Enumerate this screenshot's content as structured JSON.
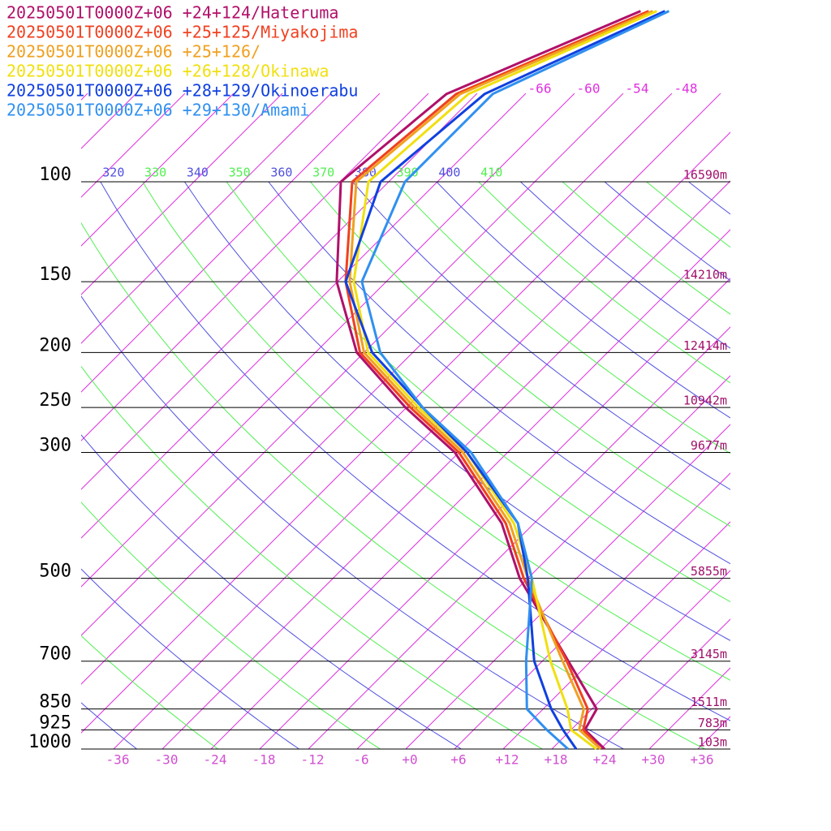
{
  "chart_data": {
    "type": "skewt",
    "ylog": true,
    "ylim": [
      1000,
      100
    ],
    "xlim": [
      -40,
      40
    ],
    "yticks": [
      100,
      150,
      200,
      250,
      300,
      500,
      700,
      850,
      925,
      1000
    ],
    "height_labels": [
      "16590m",
      "14210m",
      "12414m",
      "10942m",
      "9677m",
      "5855m",
      "3145m",
      "1511m",
      "783m",
      "103m"
    ],
    "xticks": [
      -36,
      -30,
      -24,
      -18,
      -12,
      -6,
      {
        "value": 0,
        "label": "+0"
      },
      {
        "value": 6,
        "label": "+6"
      },
      {
        "value": 12,
        "label": "+12"
      },
      {
        "value": 18,
        "label": "+18"
      },
      {
        "value": 24,
        "label": "+24"
      },
      {
        "value": 30,
        "label": "+30"
      },
      {
        "value": 36,
        "label": "+36"
      }
    ],
    "isotherm_labels": [
      -66,
      -60,
      -54,
      -48
    ],
    "theta_labels": [
      320,
      330,
      340,
      350,
      360,
      370,
      380,
      390,
      400,
      410
    ],
    "theta_colors": [
      "#5050e0",
      "#50f050"
    ],
    "isotherm_color": "#e030e0",
    "axis_label_color": "#d050d0",
    "height_color": "#a0106a",
    "pressure_levels": [
      1000,
      925,
      850,
      700,
      500,
      400,
      300,
      250,
      200,
      150,
      100,
      70,
      50
    ],
    "series": [
      {
        "name": "20250501T0000Z+06 +24+124/Hateruma",
        "color": "#b0106a",
        "values": [
          24.5,
          19.7,
          18.6,
          9.2,
          -7,
          -16,
          -30.5,
          -42.1,
          -54.9,
          -66.1,
          -77.9,
          -75.7,
          -62
        ]
      },
      {
        "name": "20250501T0000Z+06 +25+125/Miyakojima",
        "color": "#f04020",
        "values": [
          24,
          19.5,
          17.5,
          9,
          -6.5,
          -15.5,
          -30,
          -41.5,
          -54.5,
          -65,
          -76.5,
          -74.5,
          -61
        ]
      },
      {
        "name": "20250501T0000Z+06 +25+126/",
        "color": "#f0a020",
        "values": [
          24,
          19,
          17,
          8.5,
          -6,
          -15,
          -29.5,
          -41,
          -54,
          -64.5,
          -76,
          -74,
          -60.5
        ]
      },
      {
        "name": "20250501T0000Z+06 +26+128/Okinawa",
        "color": "#f0e010",
        "values": [
          23.5,
          18,
          15,
          7,
          -5.5,
          -14.5,
          -29,
          -40.5,
          -53.5,
          -64,
          -74.5,
          -73,
          -60
        ]
      },
      {
        "name": "20250501T0000Z+06 +28+129/Okinoerabu",
        "color": "#1040e0",
        "values": [
          21,
          17,
          13,
          5,
          -6,
          -14,
          -29,
          -40,
          -53,
          -65,
          -73,
          -71,
          -59
        ]
      },
      {
        "name": "20250501T0000Z+06 +29+130/Amami",
        "color": "#3090f0",
        "values": [
          20,
          15,
          10,
          4,
          -5.5,
          -14,
          -28.5,
          -40,
          -52,
          -63,
          -70,
          -70,
          -58.5
        ]
      }
    ]
  }
}
